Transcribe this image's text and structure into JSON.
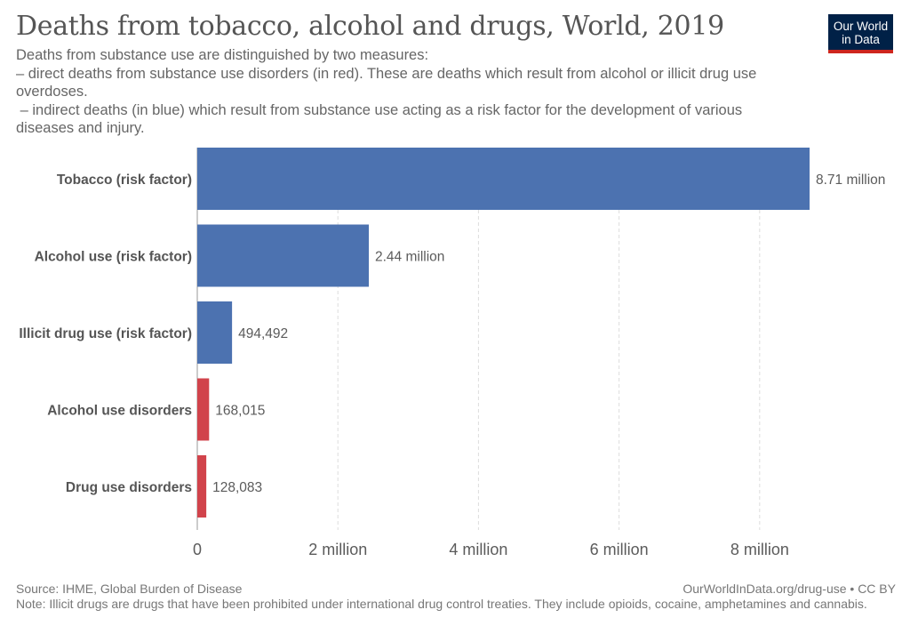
{
  "header": {
    "title": "Deaths from tobacco, alcohol and drugs, World, 2019",
    "subtitle_lines": [
      "Deaths from substance use are distinguished by two measures:",
      "– direct deaths from substance use disorders (in red). These are deaths which result from alcohol or illicit drug use",
      "overdoses.",
      " – indirect deaths (in blue) which result from substance use acting as a risk factor for the development of various",
      "diseases and injury."
    ],
    "logo_line1": "Our World",
    "logo_line2": "in Data"
  },
  "colors": {
    "indirect": "#4c72b0",
    "direct": "#d1434b",
    "grid": "#dddddd",
    "axis_label": "#5b5b5b",
    "category_label": "#555555"
  },
  "chart_data": {
    "type": "bar",
    "orientation": "horizontal",
    "categories": [
      "Tobacco (risk factor)",
      "Alcohol use (risk factor)",
      "Illicit drug use (risk factor)",
      "Alcohol use disorders",
      "Drug use disorders"
    ],
    "values": [
      8710000,
      2440000,
      494492,
      168015,
      128083
    ],
    "value_labels": [
      "8.71 million",
      "2.44 million",
      "494,492",
      "168,015",
      "128,083"
    ],
    "bar_colors": [
      "indirect",
      "indirect",
      "indirect",
      "direct",
      "direct"
    ],
    "xlim": [
      0,
      8710000
    ],
    "x_ticks": [
      0,
      2000000,
      4000000,
      6000000,
      8000000
    ],
    "x_tick_labels": [
      "0",
      "2 million",
      "4 million",
      "6 million",
      "8 million"
    ],
    "grid": true,
    "title": "Deaths from tobacco, alcohol and drugs, World, 2019"
  },
  "footer": {
    "source": "Source: IHME, Global Burden of Disease",
    "url": "OurWorldInData.org/drug-use • CC BY",
    "note": "Note: Illicit drugs are drugs that have been prohibited under international drug control treaties. They include opioids, cocaine, amphetamines and cannabis."
  }
}
